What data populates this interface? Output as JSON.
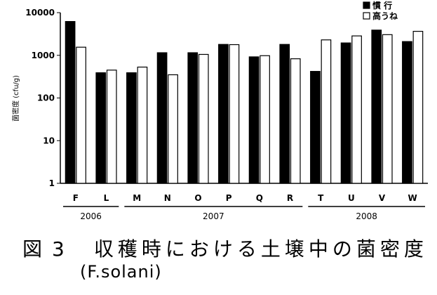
{
  "chart_data": {
    "type": "bar",
    "ylabel": "菌密度 (cfu/g)",
    "yscale": "log",
    "ylim": [
      1,
      10000
    ],
    "yticks": [
      "1",
      "10",
      "100",
      "1000",
      "10000"
    ],
    "categories": [
      "F",
      "L",
      "M",
      "N",
      "O",
      "P",
      "Q",
      "R",
      "T",
      "U",
      "V",
      "W"
    ],
    "series": [
      {
        "name": "慣 行",
        "color": "#000000",
        "values": [
          6200,
          390,
          390,
          1150,
          1150,
          1800,
          920,
          1800,
          420,
          1950,
          3900,
          2100
        ]
      },
      {
        "name": "高うね",
        "color": "#ffffff",
        "values": [
          1550,
          450,
          530,
          350,
          1050,
          1780,
          980,
          830,
          2300,
          2850,
          3050,
          3650
        ]
      }
    ],
    "year_groups": [
      {
        "label": "2006",
        "start": 0,
        "end": 1
      },
      {
        "label": "2007",
        "start": 2,
        "end": 7
      },
      {
        "label": "2008",
        "start": 8,
        "end": 11
      }
    ],
    "legend_position": "top-right",
    "grid": false
  },
  "caption": {
    "prefix": "図",
    "number": "3",
    "title": "収穫時における土壌中の菌密度",
    "subtitle": "(F.solani)"
  }
}
